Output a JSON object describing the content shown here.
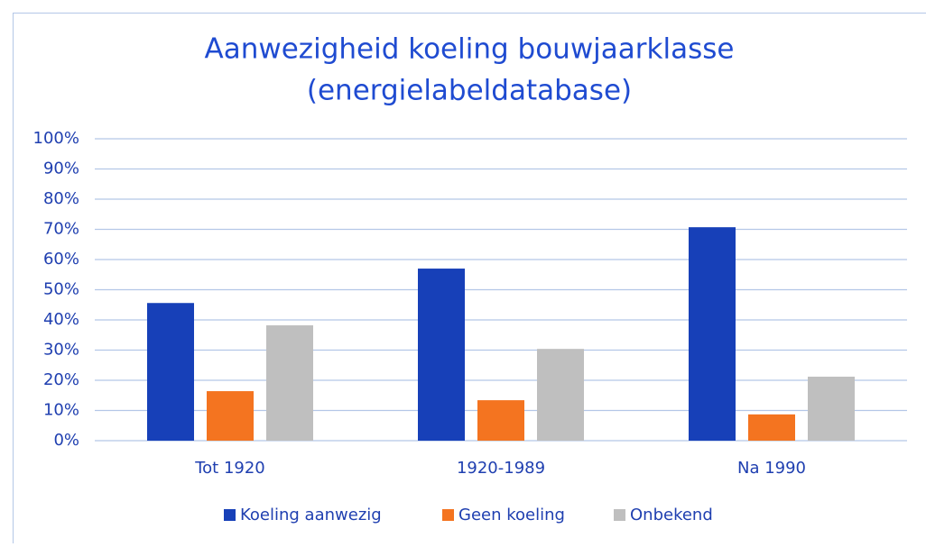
{
  "chart_data": {
    "type": "bar",
    "title": [
      "Aanwezigheid koeling bouwjaarklasse",
      "(energielabeldatabase)"
    ],
    "categories": [
      "Tot 1920",
      "1920-1989",
      "Na 1990"
    ],
    "series": [
      {
        "name": "Koeling aanwezig",
        "color": "#1740b8",
        "values": [
          45.6,
          57,
          70.7
        ]
      },
      {
        "name": "Geen koeling",
        "color": "#f47420",
        "values": [
          16.4,
          13.4,
          8.7
        ]
      },
      {
        "name": "Onbekend",
        "color": "#bfbfbf",
        "values": [
          38.2,
          30.4,
          21.2
        ]
      }
    ],
    "ylim": [
      0,
      100
    ],
    "yticks": [
      {
        "value": 0,
        "label": "0%"
      },
      {
        "value": 10,
        "label": "10%"
      },
      {
        "value": 20,
        "label": "20%"
      },
      {
        "value": 30,
        "label": "30%"
      },
      {
        "value": 40,
        "label": "40%"
      },
      {
        "value": 50,
        "label": "50%"
      },
      {
        "value": 60,
        "label": "60%"
      },
      {
        "value": 70,
        "label": "70%"
      },
      {
        "value": 80,
        "label": "80%"
      },
      {
        "value": 90,
        "label": "90%"
      },
      {
        "value": 100,
        "label": "100%"
      }
    ],
    "grid": true,
    "legend": "bottom"
  }
}
